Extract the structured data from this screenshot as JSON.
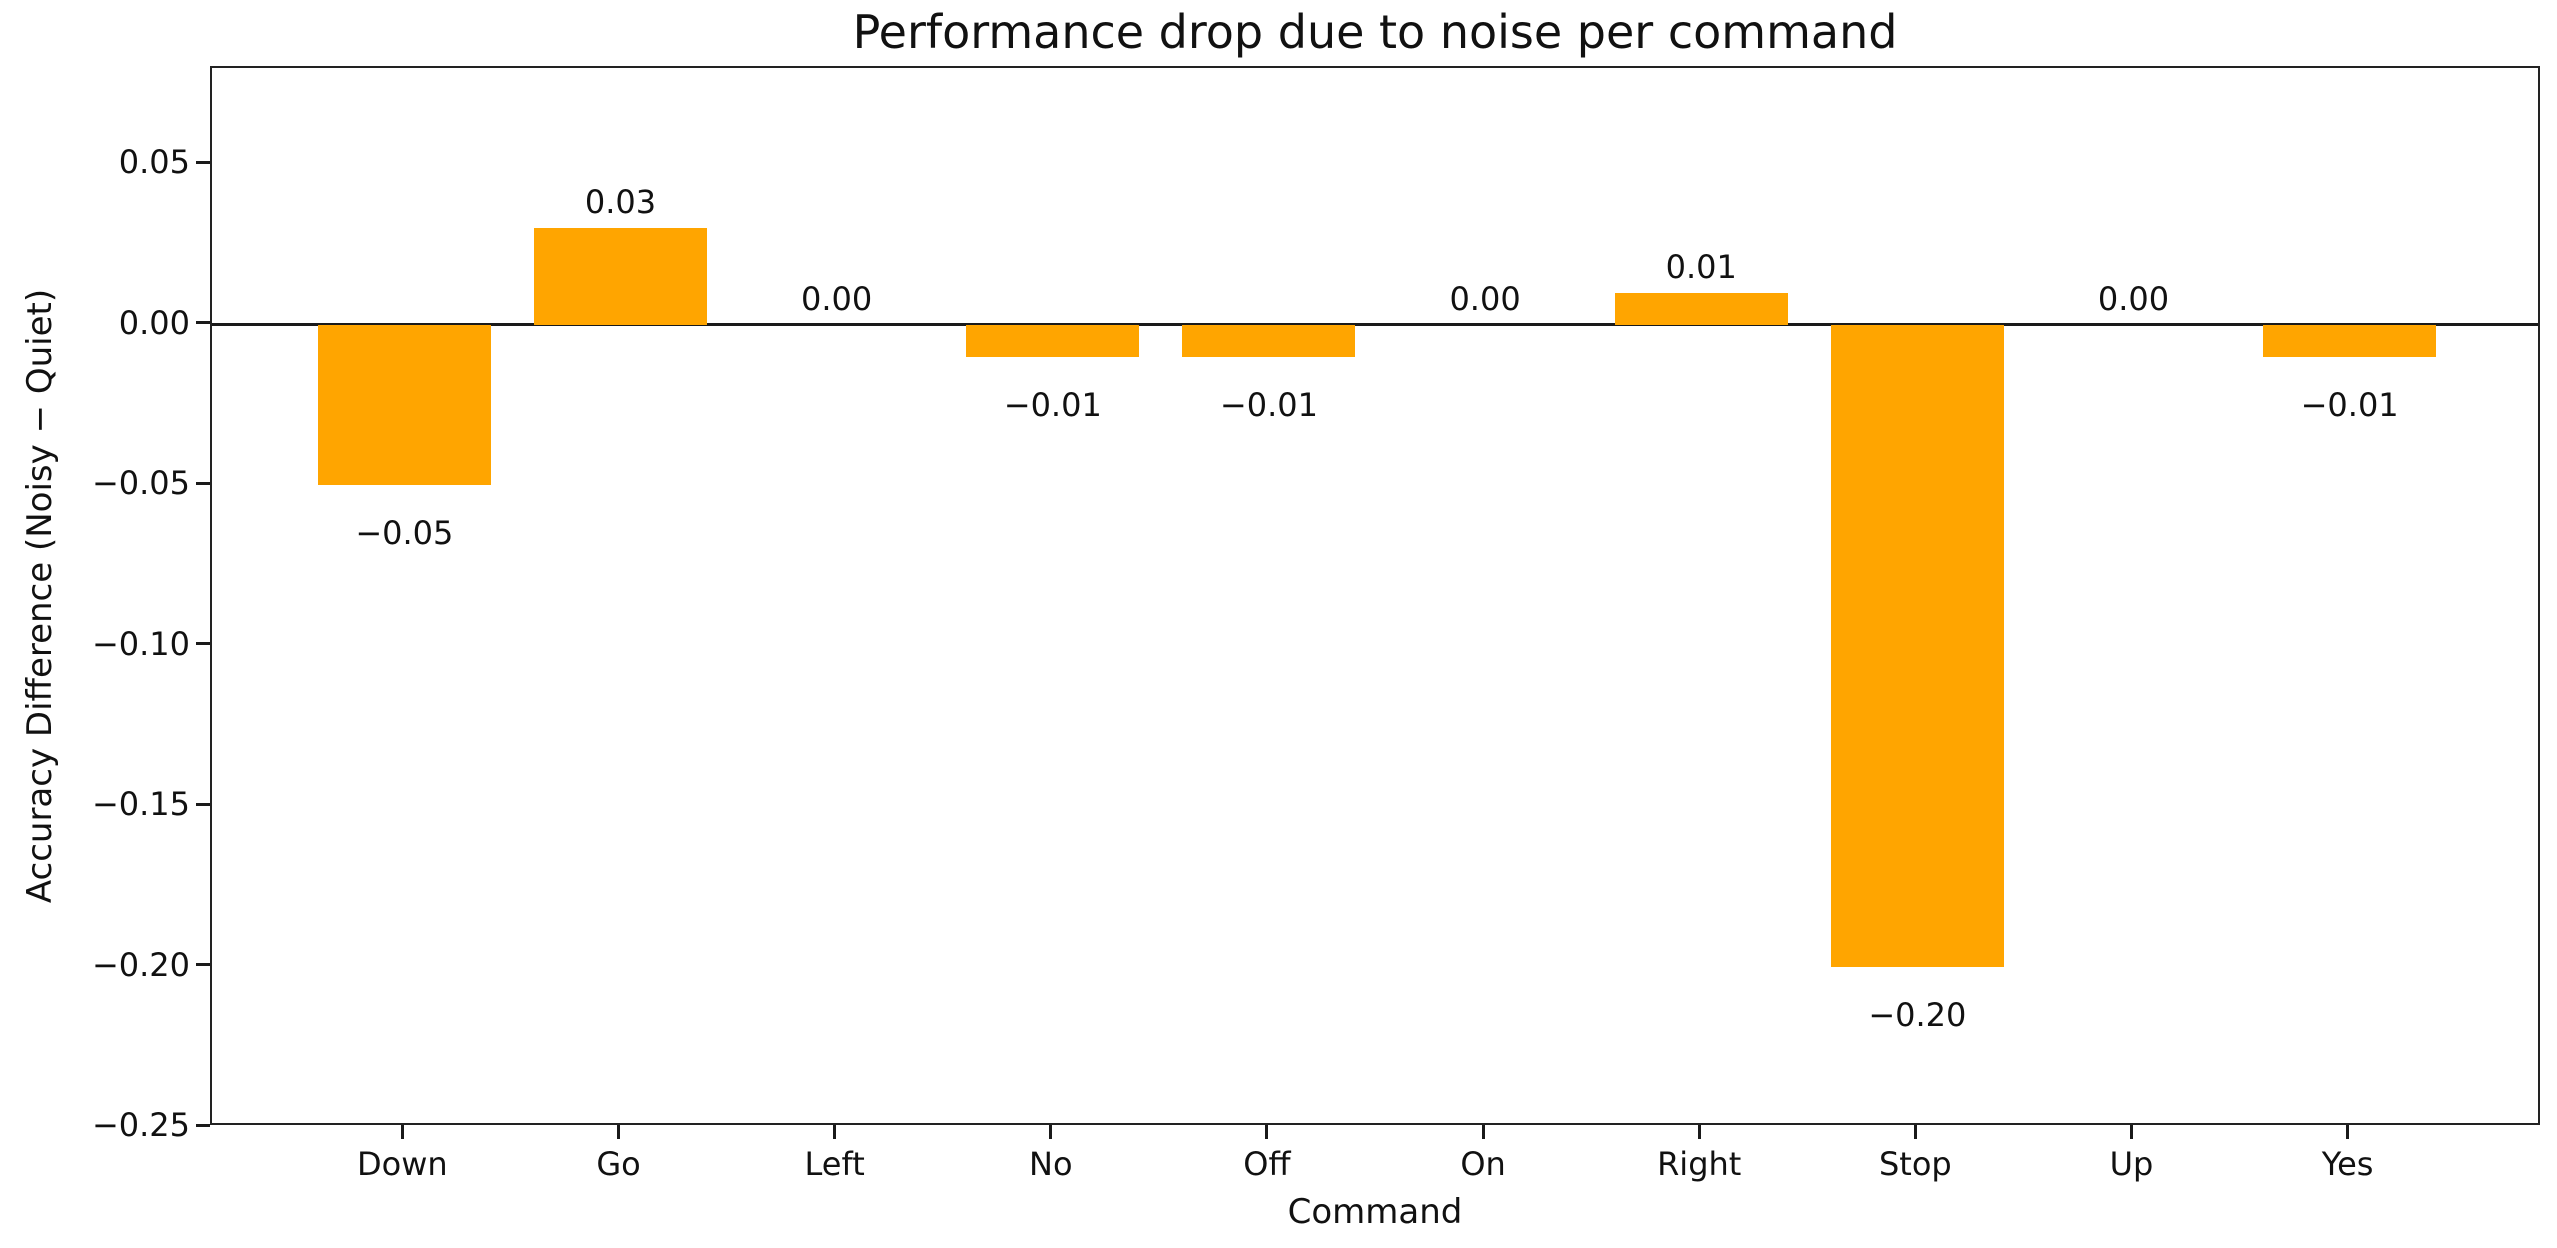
{
  "chart_data": {
    "type": "bar",
    "title": "Performance drop due to noise per command",
    "xlabel": "Command",
    "ylabel": "Accuracy Difference (Noisy − Quiet)",
    "categories": [
      "Down",
      "Go",
      "Left",
      "No",
      "Off",
      "On",
      "Right",
      "Stop",
      "Up",
      "Yes"
    ],
    "values": [
      -0.05,
      0.03,
      0.0,
      -0.01,
      -0.01,
      0.0,
      0.01,
      -0.2,
      0.0,
      -0.01
    ],
    "bar_labels": [
      "−0.05",
      "0.03",
      "0.00",
      "−0.01",
      "−0.01",
      "0.00",
      "0.01",
      "−0.20",
      "0.00",
      "−0.01"
    ],
    "yticks": [
      0.05,
      0.0,
      -0.05,
      -0.1,
      -0.15,
      -0.2,
      -0.25
    ],
    "ytick_labels": [
      "0.05",
      "0.00",
      "−0.05",
      "−0.10",
      "−0.15",
      "−0.20",
      "−0.25"
    ],
    "ylim": [
      -0.25,
      0.08
    ],
    "bar_color": "#FFA500",
    "axis_color": "#1a1a1a",
    "text_color": "#111111",
    "background_color": "#ffffff",
    "bar_width_frac": 0.8,
    "x_edge_pad": 0.89,
    "grid": false,
    "legend": null,
    "zero_line": true
  }
}
